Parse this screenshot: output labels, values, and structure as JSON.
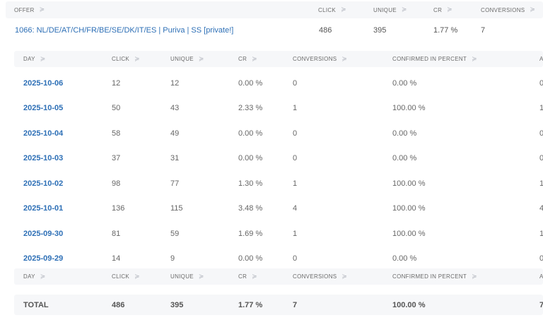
{
  "outer_header": {
    "offer": "OFFER",
    "click": "CLICK",
    "unique": "UNIQUE",
    "cr": "CR",
    "conversions": "CONVERSIONS"
  },
  "offer": {
    "name": "1066: NL/DE/AT/CH/FR/BE/SE/DK/IT/ES | Puriva | SS [private!]",
    "click": "486",
    "unique": "395",
    "cr": "1.77 %",
    "conversions": "7"
  },
  "inner_header": {
    "day": "DAY",
    "click": "CLICK",
    "unique": "UNIQUE",
    "cr": "CR",
    "conversions": "CONVERSIONS",
    "confirmed_percent": "CONFIRMED IN PERCENT",
    "next_col": "A"
  },
  "rows": [
    {
      "day": "2025-10-06",
      "click": "12",
      "unique": "12",
      "cr": "0.00 %",
      "conversions": "0",
      "confirmed": "0.00 %",
      "next": "0"
    },
    {
      "day": "2025-10-05",
      "click": "50",
      "unique": "43",
      "cr": "2.33 %",
      "conversions": "1",
      "confirmed": "100.00 %",
      "next": "1"
    },
    {
      "day": "2025-10-04",
      "click": "58",
      "unique": "49",
      "cr": "0.00 %",
      "conversions": "0",
      "confirmed": "0.00 %",
      "next": "0"
    },
    {
      "day": "2025-10-03",
      "click": "37",
      "unique": "31",
      "cr": "0.00 %",
      "conversions": "0",
      "confirmed": "0.00 %",
      "next": "0"
    },
    {
      "day": "2025-10-02",
      "click": "98",
      "unique": "77",
      "cr": "1.30 %",
      "conversions": "1",
      "confirmed": "100.00 %",
      "next": "1"
    },
    {
      "day": "2025-10-01",
      "click": "136",
      "unique": "115",
      "cr": "3.48 %",
      "conversions": "4",
      "confirmed": "100.00 %",
      "next": "4"
    },
    {
      "day": "2025-09-30",
      "click": "81",
      "unique": "59",
      "cr": "1.69 %",
      "conversions": "1",
      "confirmed": "100.00 %",
      "next": "1"
    },
    {
      "day": "2025-09-29",
      "click": "14",
      "unique": "9",
      "cr": "0.00 %",
      "conversions": "0",
      "confirmed": "0.00 %",
      "next": "0"
    }
  ],
  "total": {
    "label": "TOTAL",
    "click": "486",
    "unique": "395",
    "cr": "1.77 %",
    "conversions": "7",
    "confirmed": "100.00 %",
    "next": "7"
  },
  "sort_icon_glyph": "≫",
  "colors": {
    "link": "#2d6fb6",
    "header_bg": "#f6f7f9",
    "text": "#666666"
  }
}
